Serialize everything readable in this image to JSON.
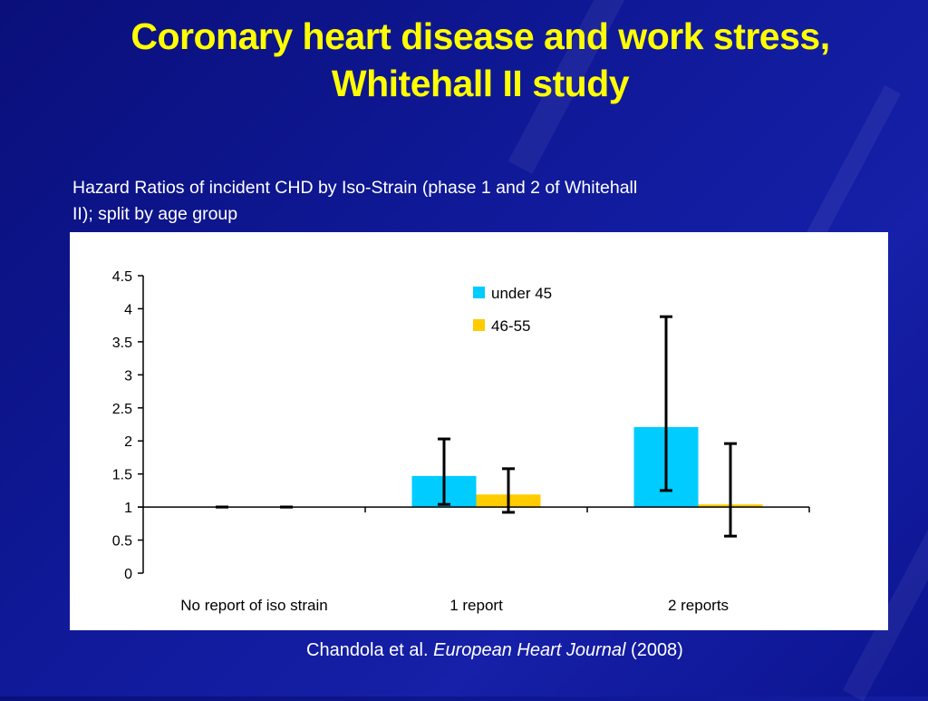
{
  "slide": {
    "title_line1": "Coronary heart disease and work stress,",
    "title_line2": "Whitehall II study",
    "subtitle_line1": "Hazard Ratios of incident CHD by Iso-Strain (phase 1 and 2 of Whitehall",
    "subtitle_line2": "II); split by age group",
    "citation": {
      "authors": "Chandola et al.",
      "journal": "European Heart Journal",
      "year": "(2008)"
    }
  },
  "colors": {
    "background": "#101a9a",
    "title": "#ffff00",
    "text": "#ffffff",
    "series_under45": "#00ccff",
    "series_46_55": "#ffcc00"
  },
  "chart_data": {
    "type": "bar",
    "title": "Hazard Ratios of incident CHD by Iso-Strain (phase 1 and 2 of Whitehall II); split by age group",
    "xlabel": "",
    "ylabel": "",
    "ylim": [
      0,
      4.5
    ],
    "baseline": 1,
    "yticks": [
      0,
      0.5,
      1,
      1.5,
      2,
      2.5,
      3,
      3.5,
      4,
      4.5
    ],
    "ytick_labels": [
      "0",
      "0.5",
      "1",
      "1.5",
      "2",
      "2.5",
      "3",
      "3.5",
      "4",
      "4.5"
    ],
    "categories": [
      "No report of iso strain",
      "1 report",
      "2 reports"
    ],
    "legend_position": "top-center",
    "grid": false,
    "series": [
      {
        "name": "under 45",
        "color": "#00ccff",
        "values": [
          1.0,
          1.47,
          2.21
        ],
        "ci_low": [
          1.0,
          1.04,
          1.25
        ],
        "ci_high": [
          1.0,
          2.03,
          3.88
        ]
      },
      {
        "name": "46-55",
        "color": "#ffcc00",
        "values": [
          1.0,
          1.19,
          1.04
        ],
        "ci_low": [
          1.0,
          0.92,
          0.56
        ],
        "ci_high": [
          1.0,
          1.58,
          1.96
        ]
      }
    ]
  }
}
